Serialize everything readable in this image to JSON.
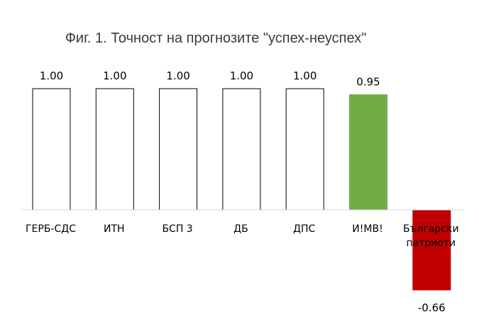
{
  "chart_data": {
    "type": "bar",
    "title": "Фиг. 1. Точност на прогнозите \"успех-неуспех\"",
    "categories": [
      "ГЕРБ-СДС",
      "ИТН",
      "БСП 3",
      "ДБ",
      "ДПС",
      "И!МВ!",
      "Български патриоти"
    ],
    "category_lines": [
      [
        "ГЕРБ-СДС"
      ],
      [
        "ИТН"
      ],
      [
        "БСП 3"
      ],
      [
        "ДБ"
      ],
      [
        "ДПС"
      ],
      [
        "И!МВ!"
      ],
      [
        "Български",
        "патриоти"
      ]
    ],
    "values": [
      1.0,
      1.0,
      1.0,
      1.0,
      1.0,
      0.95,
      -0.66
    ],
    "value_labels": [
      "1.00",
      "1.00",
      "1.00",
      "1.00",
      "1.00",
      "0.95",
      "-0.66"
    ],
    "fills": [
      "#ffffff",
      "#ffffff",
      "#ffffff",
      "#ffffff",
      "#ffffff",
      "#70ad47",
      "#c00000"
    ],
    "strokes": [
      "#000000",
      "#000000",
      "#000000",
      "#000000",
      "#000000",
      "#70ad47",
      "#c00000"
    ],
    "ylim": [
      -0.66,
      1.0
    ],
    "xlabel": "",
    "ylabel": "",
    "grid": false,
    "legend": "none"
  }
}
